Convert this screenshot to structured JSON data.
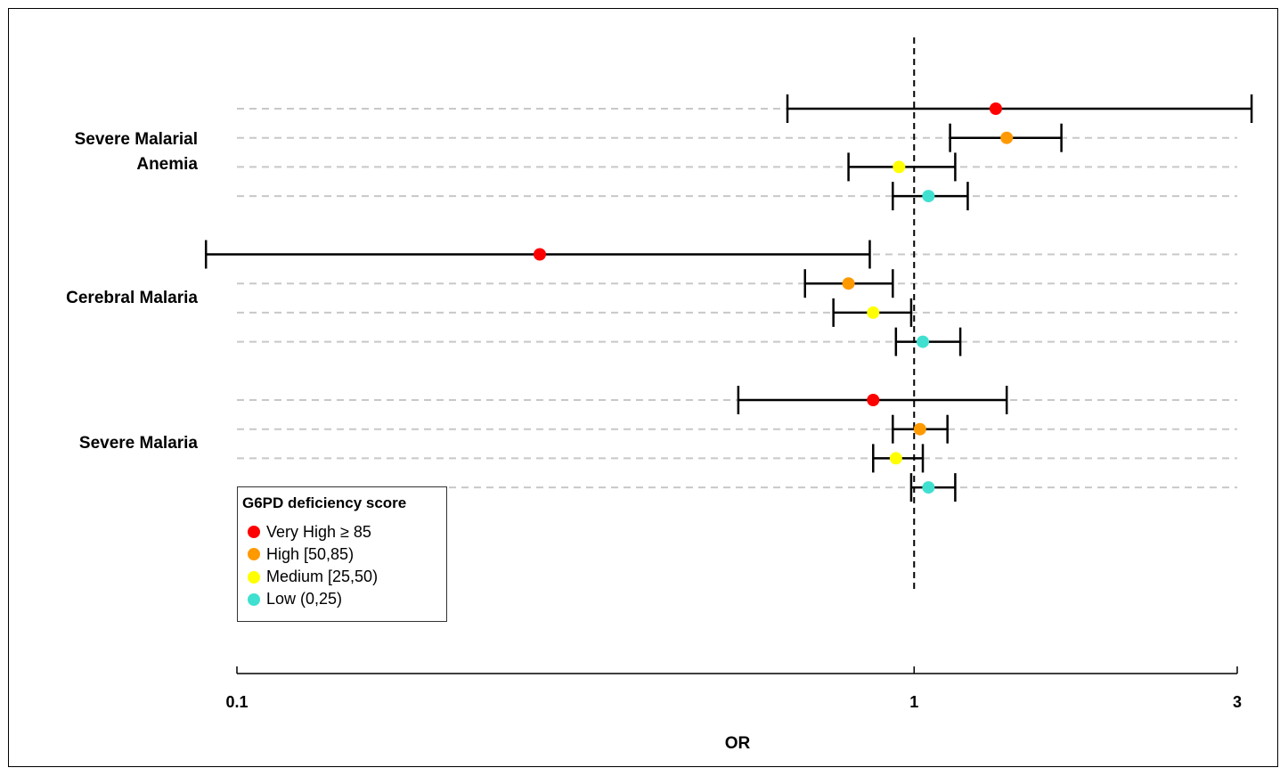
{
  "chart_data": {
    "type": "forest",
    "xlabel": "OR",
    "x_scale": "log",
    "xlim": [
      0.1,
      3
    ],
    "x_ticks": [
      {
        "value": 0.1,
        "label": "0.1"
      },
      {
        "value": 1,
        "label": "1"
      },
      {
        "value": 3,
        "label": "3"
      }
    ],
    "reference_line": 1,
    "legend_title": "G6PD deficiency score",
    "legend_placement": "bottom-left",
    "series": [
      {
        "key": "very_high",
        "name": "Very High  ≥ 85",
        "color": "#ff0000"
      },
      {
        "key": "high",
        "name": "High [50,85)",
        "color": "#ff9900"
      },
      {
        "key": "medium",
        "name": "Medium [25,50)",
        "color": "#ffff00"
      },
      {
        "key": "low",
        "name": "Low (0,25)",
        "color": "#40e0d0"
      }
    ],
    "groups": [
      {
        "label_lines": [
          "Severe Malarial",
          "Anemia"
        ],
        "estimates": [
          {
            "series": "very_high",
            "or": 1.32,
            "lower": 0.65,
            "upper": 3.15
          },
          {
            "series": "high",
            "or": 1.37,
            "lower": 1.13,
            "upper": 1.65
          },
          {
            "series": "medium",
            "or": 0.95,
            "lower": 0.8,
            "upper": 1.15
          },
          {
            "series": "low",
            "or": 1.05,
            "lower": 0.93,
            "upper": 1.2
          }
        ]
      },
      {
        "label_lines": [
          "Cerebral Malaria"
        ],
        "estimates": [
          {
            "series": "very_high",
            "or": 0.28,
            "lower": 0.09,
            "upper": 0.86
          },
          {
            "series": "high",
            "or": 0.8,
            "lower": 0.69,
            "upper": 0.93
          },
          {
            "series": "medium",
            "or": 0.87,
            "lower": 0.76,
            "upper": 0.99
          },
          {
            "series": "low",
            "or": 1.03,
            "lower": 0.94,
            "upper": 1.17
          }
        ]
      },
      {
        "label_lines": [
          "Severe Malaria"
        ],
        "estimates": [
          {
            "series": "very_high",
            "or": 0.87,
            "lower": 0.55,
            "upper": 1.37
          },
          {
            "series": "high",
            "or": 1.02,
            "lower": 0.93,
            "upper": 1.12
          },
          {
            "series": "medium",
            "or": 0.94,
            "lower": 0.87,
            "upper": 1.03
          },
          {
            "series": "low",
            "or": 1.05,
            "lower": 0.99,
            "upper": 1.15
          }
        ]
      }
    ]
  }
}
